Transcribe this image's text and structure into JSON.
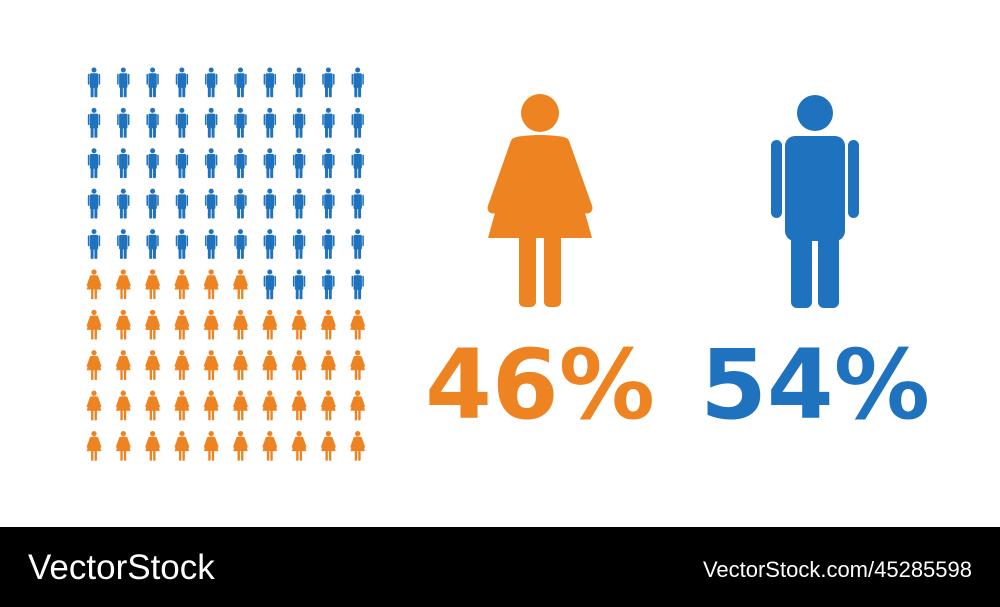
{
  "chart_data": {
    "type": "pictogram",
    "series": [
      {
        "name": "female",
        "color": "#ee8322",
        "values": [
          46
        ],
        "value_labels": [
          "46%"
        ]
      },
      {
        "name": "male",
        "color": "#1f72bd",
        "values": [
          54
        ],
        "value_labels": [
          "54%"
        ]
      }
    ]
  },
  "watermark": {
    "brand": "VectorStock",
    "id": "VectorStock.com/45285598"
  }
}
